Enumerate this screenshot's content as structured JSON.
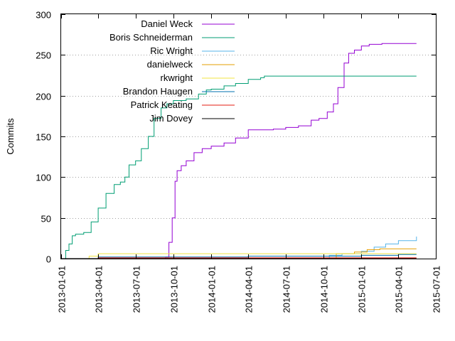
{
  "chart_data": {
    "type": "line",
    "title": "",
    "xlabel": "",
    "ylabel": "Commits",
    "x_range": [
      "2013-01-01",
      "2015-07-01"
    ],
    "ylim": [
      0,
      300
    ],
    "y_ticks": [
      0,
      50,
      100,
      150,
      200,
      250,
      300
    ],
    "x_ticks": [
      "2013-01-01",
      "2013-04-01",
      "2013-07-01",
      "2013-10-01",
      "2014-01-01",
      "2014-04-01",
      "2014-07-01",
      "2014-10-01",
      "2015-01-01",
      "2015-04-01",
      "2015-07-01"
    ],
    "grid": "horizontal dotted",
    "legend_position": "top-left",
    "series": [
      {
        "name": "Daniel Weck",
        "color": "#9400d3",
        "points": [
          [
            "2013-01-01",
            0
          ],
          [
            "2013-09-05",
            0
          ],
          [
            "2013-09-12",
            2
          ],
          [
            "2013-09-20",
            20
          ],
          [
            "2013-09-28",
            50
          ],
          [
            "2013-10-05",
            95
          ],
          [
            "2013-10-10",
            108
          ],
          [
            "2013-10-20",
            114
          ],
          [
            "2013-11-01",
            120
          ],
          [
            "2013-11-20",
            130
          ],
          [
            "2013-12-10",
            135
          ],
          [
            "2014-01-01",
            138
          ],
          [
            "2014-02-01",
            142
          ],
          [
            "2014-03-01",
            148
          ],
          [
            "2014-04-01",
            158
          ],
          [
            "2014-05-01",
            158
          ],
          [
            "2014-06-01",
            159
          ],
          [
            "2014-07-01",
            161
          ],
          [
            "2014-08-01",
            163
          ],
          [
            "2014-09-01",
            170
          ],
          [
            "2014-09-20",
            172
          ],
          [
            "2014-10-10",
            180
          ],
          [
            "2014-10-25",
            190
          ],
          [
            "2014-11-05",
            210
          ],
          [
            "2014-11-20",
            240
          ],
          [
            "2014-12-01",
            252
          ],
          [
            "2014-12-15",
            256
          ],
          [
            "2015-01-01",
            261
          ],
          [
            "2015-01-20",
            263
          ],
          [
            "2015-02-20",
            264
          ],
          [
            "2015-05-15",
            264
          ]
        ]
      },
      {
        "name": "Boris Schneiderman",
        "color": "#009e73",
        "points": [
          [
            "2013-01-01",
            0
          ],
          [
            "2013-01-05",
            0
          ],
          [
            "2013-01-12",
            10
          ],
          [
            "2013-01-20",
            18
          ],
          [
            "2013-01-28",
            28
          ],
          [
            "2013-02-05",
            30
          ],
          [
            "2013-02-25",
            32
          ],
          [
            "2013-03-15",
            45
          ],
          [
            "2013-04-01",
            62
          ],
          [
            "2013-04-20",
            80
          ],
          [
            "2013-05-10",
            91
          ],
          [
            "2013-05-25",
            94
          ],
          [
            "2013-06-05",
            100
          ],
          [
            "2013-06-15",
            115
          ],
          [
            "2013-07-01",
            120
          ],
          [
            "2013-07-15",
            135
          ],
          [
            "2013-08-01",
            150
          ],
          [
            "2013-08-15",
            172
          ],
          [
            "2013-09-01",
            185
          ],
          [
            "2013-09-15",
            190
          ],
          [
            "2013-10-01",
            194
          ],
          [
            "2013-11-01",
            196
          ],
          [
            "2013-12-01",
            202
          ],
          [
            "2013-12-20",
            207
          ],
          [
            "2014-01-01",
            208
          ],
          [
            "2014-02-01",
            212
          ],
          [
            "2014-03-01",
            215
          ],
          [
            "2014-04-01",
            220
          ],
          [
            "2014-05-01",
            222
          ],
          [
            "2014-05-10",
            224
          ],
          [
            "2015-05-15",
            224
          ]
        ]
      },
      {
        "name": "Ric Wright",
        "color": "#56b4e9",
        "points": [
          [
            "2013-01-01",
            0
          ],
          [
            "2014-10-01",
            0
          ],
          [
            "2014-10-15",
            4
          ],
          [
            "2014-11-15",
            6
          ],
          [
            "2015-01-01",
            9
          ],
          [
            "2015-02-01",
            14
          ],
          [
            "2015-03-01",
            18
          ],
          [
            "2015-04-01",
            22
          ],
          [
            "2015-05-15",
            27
          ]
        ]
      },
      {
        "name": "danielweck",
        "color": "#e69f00",
        "points": [
          [
            "2013-01-01",
            0
          ],
          [
            "2014-10-20",
            0
          ],
          [
            "2014-11-01",
            6
          ],
          [
            "2014-12-15",
            8
          ],
          [
            "2015-01-15",
            11
          ],
          [
            "2015-02-15",
            12
          ],
          [
            "2015-05-15",
            12
          ]
        ]
      },
      {
        "name": "rkwright",
        "color": "#f0e442",
        "points": [
          [
            "2013-01-01",
            0
          ],
          [
            "2013-03-01",
            0
          ],
          [
            "2013-03-10",
            3
          ],
          [
            "2013-04-01",
            6
          ],
          [
            "2014-05-01",
            6
          ],
          [
            "2014-10-01",
            6
          ],
          [
            "2015-05-15",
            6
          ]
        ]
      },
      {
        "name": "Brandon Haugen",
        "color": "#0072b2",
        "points": [
          [
            "2013-01-01",
            0
          ],
          [
            "2013-03-15",
            0
          ],
          [
            "2013-04-01",
            2
          ],
          [
            "2014-04-01",
            3
          ],
          [
            "2014-10-01",
            3
          ],
          [
            "2015-01-01",
            4
          ],
          [
            "2015-04-01",
            5
          ],
          [
            "2015-05-15",
            5
          ]
        ]
      },
      {
        "name": "Patrick Keating",
        "color": "#e51e10",
        "points": [
          [
            "2013-01-01",
            0
          ],
          [
            "2013-03-01",
            0
          ],
          [
            "2013-04-01",
            1
          ],
          [
            "2015-05-15",
            1
          ]
        ]
      },
      {
        "name": "Jim Dovey",
        "color": "#000000",
        "points": [
          [
            "2013-01-01",
            0
          ],
          [
            "2015-05-15",
            0
          ]
        ]
      }
    ]
  }
}
